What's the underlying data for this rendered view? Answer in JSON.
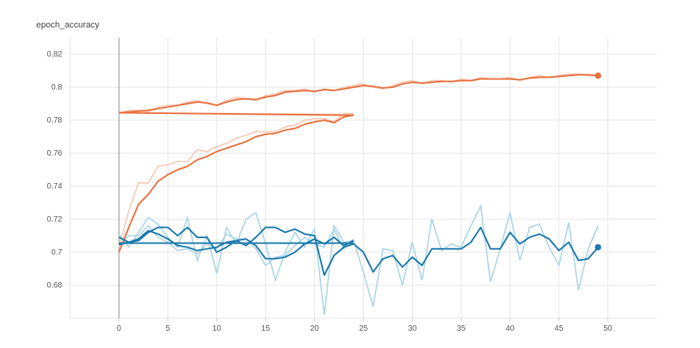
{
  "chart_data": {
    "type": "line",
    "title": "epoch_accuracy",
    "xlabel": "",
    "ylabel": "",
    "xlim": [
      -5,
      55
    ],
    "ylim": [
      0.66,
      0.83
    ],
    "x_ticks": [
      0,
      5,
      10,
      15,
      20,
      25,
      30,
      35,
      40,
      45,
      50
    ],
    "y_ticks": [
      0.68,
      0.7,
      0.72,
      0.74,
      0.76,
      0.78,
      0.8,
      0.82
    ],
    "grid": true,
    "legend": "none",
    "colors": {
      "train": "#e8703f",
      "train_raw": "#f7c7b3",
      "validation": "#1978ac",
      "validation_raw": "#a9d4e6"
    },
    "series": [
      {
        "group": "train",
        "x": [
          0,
          1,
          2,
          3,
          4,
          5,
          6,
          7,
          8,
          9,
          10,
          11,
          12,
          13,
          14,
          15,
          16,
          17,
          18,
          19,
          20,
          21,
          22,
          23,
          24,
          25,
          26,
          27,
          28,
          29,
          30,
          31,
          32,
          33,
          34,
          35,
          36,
          37,
          38,
          39,
          40,
          41,
          42,
          43,
          44,
          45,
          46,
          47,
          48,
          49
        ],
        "values": [
          0.7845,
          0.785,
          0.7855,
          0.786,
          0.787,
          0.788,
          0.789,
          0.79,
          0.791,
          0.7905,
          0.789,
          0.791,
          0.7925,
          0.793,
          0.7925,
          0.794,
          0.795,
          0.797,
          0.7975,
          0.798,
          0.7975,
          0.7985,
          0.798,
          0.799,
          0.8,
          0.801,
          0.8005,
          0.7995,
          0.8,
          0.802,
          0.803,
          0.8025,
          0.803,
          0.8035,
          0.8035,
          0.804,
          0.804,
          0.805,
          0.805,
          0.805,
          0.805,
          0.8045,
          0.8055,
          0.806,
          0.806,
          0.8065,
          0.807,
          0.8075,
          0.8075,
          0.807
        ],
        "raw": [
          0.784,
          0.786,
          0.786,
          0.785,
          0.788,
          0.789,
          0.789,
          0.791,
          0.792,
          0.79,
          0.789,
          0.792,
          0.794,
          0.793,
          0.792,
          0.795,
          0.796,
          0.798,
          0.798,
          0.799,
          0.797,
          0.799,
          0.798,
          0.8,
          0.801,
          0.802,
          0.8,
          0.799,
          0.801,
          0.803,
          0.804,
          0.802,
          0.804,
          0.804,
          0.803,
          0.805,
          0.804,
          0.806,
          0.805,
          0.805,
          0.806,
          0.804,
          0.806,
          0.807,
          0.806,
          0.807,
          0.808,
          0.808,
          0.807,
          0.807
        ]
      },
      {
        "group": "train",
        "x": [
          0,
          1,
          2,
          3,
          4,
          5,
          6,
          7,
          8,
          9,
          10,
          11,
          12,
          13,
          14,
          15,
          16,
          17,
          18,
          19,
          20,
          21,
          22,
          23,
          24
        ],
        "values": [
          0.7,
          0.715,
          0.729,
          0.735,
          0.743,
          0.747,
          0.75,
          0.752,
          0.756,
          0.758,
          0.761,
          0.763,
          0.765,
          0.767,
          0.77,
          0.7715,
          0.772,
          0.774,
          0.775,
          0.7775,
          0.779,
          0.78,
          0.7785,
          0.782,
          0.783
        ],
        "raw": [
          0.703,
          0.725,
          0.742,
          0.742,
          0.752,
          0.753,
          0.755,
          0.755,
          0.762,
          0.761,
          0.764,
          0.766,
          0.769,
          0.771,
          0.773,
          0.773,
          0.773,
          0.776,
          0.777,
          0.78,
          0.781,
          0.781,
          0.779,
          0.784,
          0.784
        ]
      },
      {
        "group": "train",
        "x": [
          0,
          24
        ],
        "values": [
          0.7845,
          0.783
        ],
        "raw": [
          0.7845,
          0.7835
        ]
      },
      {
        "group": "validation",
        "x": [
          0,
          1,
          2,
          3,
          4,
          5,
          6,
          7,
          8,
          9,
          10,
          11,
          12,
          13,
          14,
          15,
          16,
          17,
          18,
          19,
          20,
          21,
          22,
          23,
          24,
          25,
          26,
          27,
          28,
          29,
          30,
          31,
          32,
          33,
          34,
          35,
          36,
          37,
          38,
          39,
          40,
          41,
          42,
          43,
          44,
          45,
          46,
          47,
          48,
          49
        ],
        "values": [
          0.709,
          0.706,
          0.707,
          0.712,
          0.715,
          0.715,
          0.71,
          0.715,
          0.709,
          0.709,
          0.7,
          0.703,
          0.707,
          0.704,
          0.709,
          0.715,
          0.715,
          0.712,
          0.714,
          0.711,
          0.71,
          0.686,
          0.698,
          0.703,
          0.705,
          0.7,
          0.688,
          0.696,
          0.698,
          0.691,
          0.697,
          0.692,
          0.702,
          0.702,
          0.702,
          0.702,
          0.706,
          0.715,
          0.702,
          0.702,
          0.712,
          0.705,
          0.709,
          0.711,
          0.708,
          0.701,
          0.706,
          0.695,
          0.696,
          0.703
        ],
        "raw": [
          0.711,
          0.703,
          0.712,
          0.721,
          0.717,
          0.709,
          0.703,
          0.721,
          0.695,
          0.71,
          0.687,
          0.715,
          0.705,
          0.72,
          0.724,
          0.705,
          0.683,
          0.7,
          0.712,
          0.703,
          0.714,
          0.662,
          0.716,
          0.706,
          0.707,
          0.688,
          0.667,
          0.702,
          0.701,
          0.68,
          0.706,
          0.683,
          0.72,
          0.701,
          0.705,
          0.703,
          0.716,
          0.728,
          0.682,
          0.702,
          0.724,
          0.695,
          0.715,
          0.717,
          0.703,
          0.692,
          0.718,
          0.677,
          0.702,
          0.716
        ]
      },
      {
        "group": "validation",
        "x": [
          0,
          1,
          2,
          3,
          4,
          5,
          6,
          7,
          8,
          9,
          10,
          11,
          12,
          13,
          14,
          15,
          16,
          17,
          18,
          19,
          20,
          21,
          22,
          23,
          24
        ],
        "values": [
          0.7045,
          0.706,
          0.708,
          0.713,
          0.711,
          0.708,
          0.704,
          0.703,
          0.701,
          0.702,
          0.703,
          0.706,
          0.707,
          0.708,
          0.704,
          0.696,
          0.696,
          0.697,
          0.7,
          0.705,
          0.708,
          0.705,
          0.709,
          0.704,
          0.707
        ],
        "raw": [
          0.704,
          0.71,
          0.71,
          0.716,
          0.709,
          0.706,
          0.701,
          0.702,
          0.699,
          0.705,
          0.702,
          0.711,
          0.708,
          0.708,
          0.702,
          0.692,
          0.697,
          0.698,
          0.704,
          0.709,
          0.705,
          0.703,
          0.714,
          0.702,
          0.708
        ]
      },
      {
        "group": "validation",
        "x": [
          0,
          24
        ],
        "values": [
          0.7055,
          0.7055
        ],
        "raw": [
          0.7055,
          0.7055
        ]
      }
    ]
  }
}
